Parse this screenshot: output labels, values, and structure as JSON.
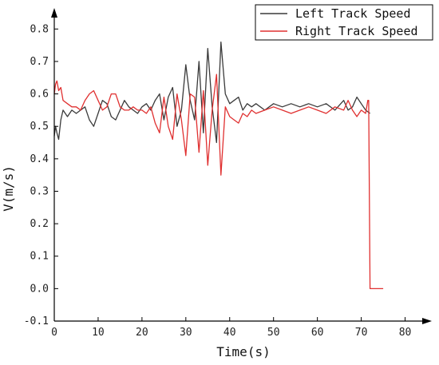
{
  "chart_data": {
    "type": "line",
    "xlabel": "Time(s)",
    "ylabel": "V(m/s)",
    "xlim": [
      0,
      85
    ],
    "ylim": [
      -0.1,
      0.85
    ],
    "x_ticks": [
      0,
      10,
      20,
      30,
      40,
      50,
      60,
      70,
      80
    ],
    "y_ticks": [
      -0.1,
      0.0,
      0.1,
      0.2,
      0.3,
      0.4,
      0.5,
      0.6,
      0.7,
      0.8
    ],
    "x_tick_labels": [
      "0",
      "10",
      "20",
      "30",
      "40",
      "50",
      "60",
      "70",
      "80"
    ],
    "y_tick_labels": [
      "-0.1",
      "0.0",
      "0.1",
      "0.2",
      "0.3",
      "0.4",
      "0.5",
      "0.6",
      "0.7",
      "0.8"
    ],
    "legend_position": "top-right",
    "grid": false,
    "series": [
      {
        "name": "Left Track Speed",
        "color": "#3a3a3a",
        "x": [
          0,
          0.3,
          0.6,
          1,
          1.5,
          2,
          3,
          4,
          5,
          6,
          7,
          8,
          9,
          10,
          11,
          12,
          13,
          14,
          15,
          16,
          17,
          18,
          19,
          20,
          21,
          22,
          23,
          24,
          25,
          26,
          27,
          28,
          29,
          30,
          31,
          32,
          33,
          34,
          35,
          36,
          37,
          38,
          39,
          40,
          41,
          42,
          43,
          44,
          45,
          46,
          48,
          50,
          52,
          54,
          56,
          58,
          60,
          62,
          64,
          66,
          67,
          68,
          69,
          70,
          71,
          72
        ],
        "y": [
          0.47,
          0.5,
          0.48,
          0.46,
          0.52,
          0.55,
          0.53,
          0.55,
          0.54,
          0.55,
          0.56,
          0.52,
          0.5,
          0.54,
          0.58,
          0.57,
          0.53,
          0.52,
          0.55,
          0.58,
          0.56,
          0.55,
          0.54,
          0.56,
          0.57,
          0.55,
          0.58,
          0.6,
          0.52,
          0.59,
          0.62,
          0.5,
          0.55,
          0.69,
          0.58,
          0.52,
          0.7,
          0.48,
          0.74,
          0.56,
          0.45,
          0.76,
          0.6,
          0.57,
          0.58,
          0.59,
          0.55,
          0.57,
          0.56,
          0.57,
          0.55,
          0.57,
          0.56,
          0.57,
          0.56,
          0.57,
          0.56,
          0.57,
          0.55,
          0.58,
          0.55,
          0.56,
          0.59,
          0.57,
          0.55,
          0.54
        ]
      },
      {
        "name": "Right Track Speed",
        "color": "#e03030",
        "x": [
          0,
          0.3,
          0.6,
          1,
          1.5,
          2,
          3,
          4,
          5,
          6,
          7,
          8,
          9,
          10,
          11,
          12,
          13,
          14,
          15,
          16,
          17,
          18,
          19,
          20,
          21,
          22,
          23,
          24,
          25,
          26,
          27,
          28,
          29,
          30,
          31,
          32,
          33,
          34,
          35,
          36,
          37,
          38,
          39,
          40,
          41,
          42,
          43,
          44,
          45,
          46,
          48,
          50,
          52,
          54,
          56,
          58,
          60,
          62,
          64,
          66,
          67,
          68,
          69,
          70,
          71,
          71.5,
          71.7,
          72,
          75
        ],
        "y": [
          0.6,
          0.63,
          0.64,
          0.61,
          0.62,
          0.58,
          0.57,
          0.56,
          0.56,
          0.55,
          0.58,
          0.6,
          0.61,
          0.58,
          0.55,
          0.56,
          0.6,
          0.6,
          0.56,
          0.55,
          0.55,
          0.56,
          0.55,
          0.55,
          0.54,
          0.56,
          0.51,
          0.48,
          0.59,
          0.5,
          0.46,
          0.6,
          0.52,
          0.41,
          0.6,
          0.59,
          0.42,
          0.61,
          0.38,
          0.55,
          0.66,
          0.35,
          0.56,
          0.53,
          0.52,
          0.51,
          0.54,
          0.53,
          0.55,
          0.54,
          0.55,
          0.56,
          0.55,
          0.54,
          0.55,
          0.56,
          0.55,
          0.54,
          0.56,
          0.55,
          0.58,
          0.55,
          0.53,
          0.55,
          0.54,
          0.58,
          0.58,
          0.0,
          0.0
        ]
      }
    ]
  }
}
